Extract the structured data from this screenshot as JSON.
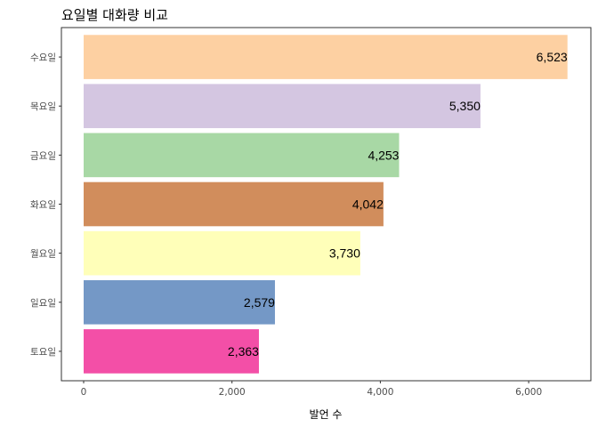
{
  "chart_data": {
    "type": "bar",
    "orientation": "horizontal",
    "title": "요일별 대화량 비교",
    "xlabel": "발언 수",
    "ylabel": "",
    "xlim": [
      0,
      6850
    ],
    "x_ticks": [
      0,
      2000,
      4000,
      6000
    ],
    "x_tick_labels": [
      "0",
      "2,000",
      "4,000",
      "6,000"
    ],
    "grid": false,
    "legend": "none",
    "categories": [
      "수요일",
      "목요일",
      "금요일",
      "화요일",
      "월요일",
      "일요일",
      "토요일"
    ],
    "values": [
      6523,
      5350,
      4253,
      4042,
      3730,
      2579,
      2363
    ],
    "value_labels": [
      "6,523",
      "5,350",
      "4,253",
      "4,042",
      "3,730",
      "2,579",
      "2,363"
    ],
    "colors": [
      "#FDD0A2",
      "#D4C6E1",
      "#A8D8A5",
      "#D18D5C",
      "#FFFFB9",
      "#7498C6",
      "#F34FA7"
    ]
  }
}
